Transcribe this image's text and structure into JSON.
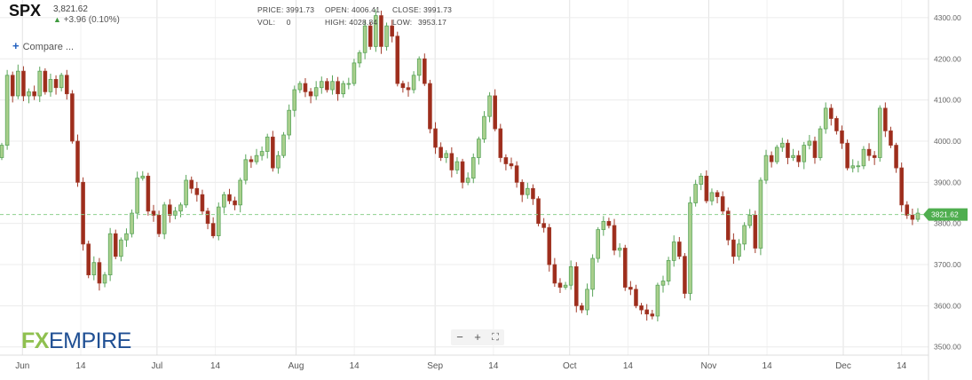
{
  "header": {
    "symbol": "SPX",
    "price": "3,821.62",
    "change": "+3.96 (0.10%)",
    "compare_label": "Compare ..."
  },
  "ohlc": {
    "price_label": "PRICE:",
    "price_value": "3991.73",
    "open_label": "OPEN:",
    "open_value": "4006.41",
    "close_label": "CLOSE:",
    "close_value": "3991.73",
    "vol_label": "VOL:",
    "vol_value": "0",
    "high_label": "HIGH:",
    "high_value": "4028.84",
    "low_label": "LOW:",
    "low_value": "3953.17"
  },
  "logo": {
    "fx": "FX",
    "empire": "EMPIRE"
  },
  "zoom_controls": {
    "zoom_out": "−",
    "zoom_in": "+",
    "fullscreen": "⛶"
  },
  "colors": {
    "up": "#5aa55a",
    "down": "#a23b2a",
    "up_fill": "#a9cf8c",
    "down_fill": "#9e2d1c",
    "last_price_badge": "#4fae4f",
    "last_price_line": "#8fd08f"
  },
  "chart_data": {
    "type": "candlestick",
    "ylim": [
      3480,
      4330
    ],
    "y_ticks": [
      "3500.00",
      "3600.00",
      "3700.00",
      "3800.00",
      "3900.00",
      "4000.00",
      "4100.00",
      "4200.00",
      "4300.00"
    ],
    "x_labels": [
      {
        "label": "Jun",
        "date": "2022-06-01"
      },
      {
        "label": "14",
        "date": "2022-06-14"
      },
      {
        "label": "Jul",
        "date": "2022-07-01"
      },
      {
        "label": "14",
        "date": "2022-07-14"
      },
      {
        "label": "Aug",
        "date": "2022-08-01"
      },
      {
        "label": "14",
        "date": "2022-08-14"
      },
      {
        "label": "Sep",
        "date": "2022-09-01"
      },
      {
        "label": "14",
        "date": "2022-09-14"
      },
      {
        "label": "Oct",
        "date": "2022-10-01"
      },
      {
        "label": "14",
        "date": "2022-10-14"
      },
      {
        "label": "Nov",
        "date": "2022-11-01"
      },
      {
        "label": "14",
        "date": "2022-11-14"
      },
      {
        "label": "Dec",
        "date": "2022-12-01"
      },
      {
        "label": "14",
        "date": "2022-12-14"
      }
    ],
    "x_range": [
      "2022-05-27",
      "2022-12-20"
    ],
    "last_price": 3821.62,
    "last_price_label": "3821.62",
    "closes": [
      3990,
      4160,
      4110,
      4170,
      4110,
      4120,
      4110,
      4170,
      4120,
      4150,
      4130,
      4160,
      4115,
      4000,
      3900,
      3750,
      3675,
      3705,
      3655,
      3675,
      3775,
      3720,
      3760,
      3775,
      3825,
      3910,
      3915,
      3830,
      3820,
      3775,
      3845,
      3820,
      3830,
      3845,
      3905,
      3885,
      3870,
      3830,
      3800,
      3770,
      3840,
      3870,
      3855,
      3845,
      3905,
      3955,
      3950,
      3965,
      3975,
      4010,
      3935,
      3965,
      4015,
      4075,
      4125,
      4140,
      4120,
      4110,
      4130,
      4145,
      4125,
      4145,
      4115,
      4140,
      4140,
      4190,
      4215,
      4280,
      4230,
      4305,
      4230,
      4280,
      4255,
      4140,
      4130,
      4125,
      4160,
      4200,
      4140,
      4030,
      3985,
      3960,
      3970,
      3930,
      3950,
      3900,
      3910,
      3960,
      4005,
      4060,
      4110,
      4030,
      3960,
      3945,
      3940,
      3900,
      3870,
      3885,
      3860,
      3800,
      3790,
      3700,
      3655,
      3645,
      3650,
      3695,
      3600,
      3590,
      3640,
      3715,
      3785,
      3805,
      3795,
      3735,
      3740,
      3645,
      3640,
      3600,
      3590,
      3580,
      3575,
      3650,
      3660,
      3710,
      3755,
      3720,
      3630,
      3850,
      3895,
      3915,
      3855,
      3875,
      3865,
      3830,
      3760,
      3720,
      3750,
      3795,
      3820,
      3740,
      3905,
      3965,
      3950,
      3985,
      3995,
      3960,
      3965,
      3950,
      3990,
      4000,
      3960,
      4030,
      4080,
      4055,
      4025,
      3995,
      3935,
      3940,
      3940,
      3980,
      3965,
      3960,
      4080,
      4025,
      3990,
      3935,
      3845,
      3820,
      3810,
      3825
    ]
  }
}
